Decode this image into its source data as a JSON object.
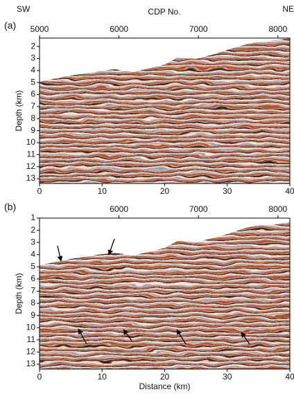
{
  "chart_data": [
    {
      "type": "seismic",
      "label": "(a)",
      "top_left": "SW",
      "top_title": "CDP No.",
      "top_right": "NE",
      "cdp_xlim": [
        5000,
        8150
      ],
      "cdp_ticks": [
        5000,
        6000,
        7000,
        8000
      ],
      "xlim": [
        0,
        40
      ],
      "xticks": [
        0,
        10,
        20,
        30,
        40
      ],
      "ylabel": "Depth (km)",
      "ylim": [
        1.3,
        13.4
      ],
      "yticks": [
        2,
        3,
        4,
        5,
        6,
        7,
        8,
        9,
        10,
        11,
        12,
        13
      ]
    },
    {
      "type": "seismic",
      "label": "(b)",
      "cdp_xlim": [
        5000,
        8150
      ],
      "cdp_ticks": [
        6000,
        7000,
        8000
      ],
      "xlim": [
        0,
        40
      ],
      "xticks": [
        0,
        10,
        20,
        30,
        40
      ],
      "xlabel": "Distance (km)",
      "ylabel": "Depth (km)",
      "ylim": [
        1,
        13.4
      ],
      "yticks": [
        1,
        2,
        3,
        4,
        5,
        6,
        7,
        8,
        9,
        10,
        11,
        12,
        13
      ]
    }
  ]
}
